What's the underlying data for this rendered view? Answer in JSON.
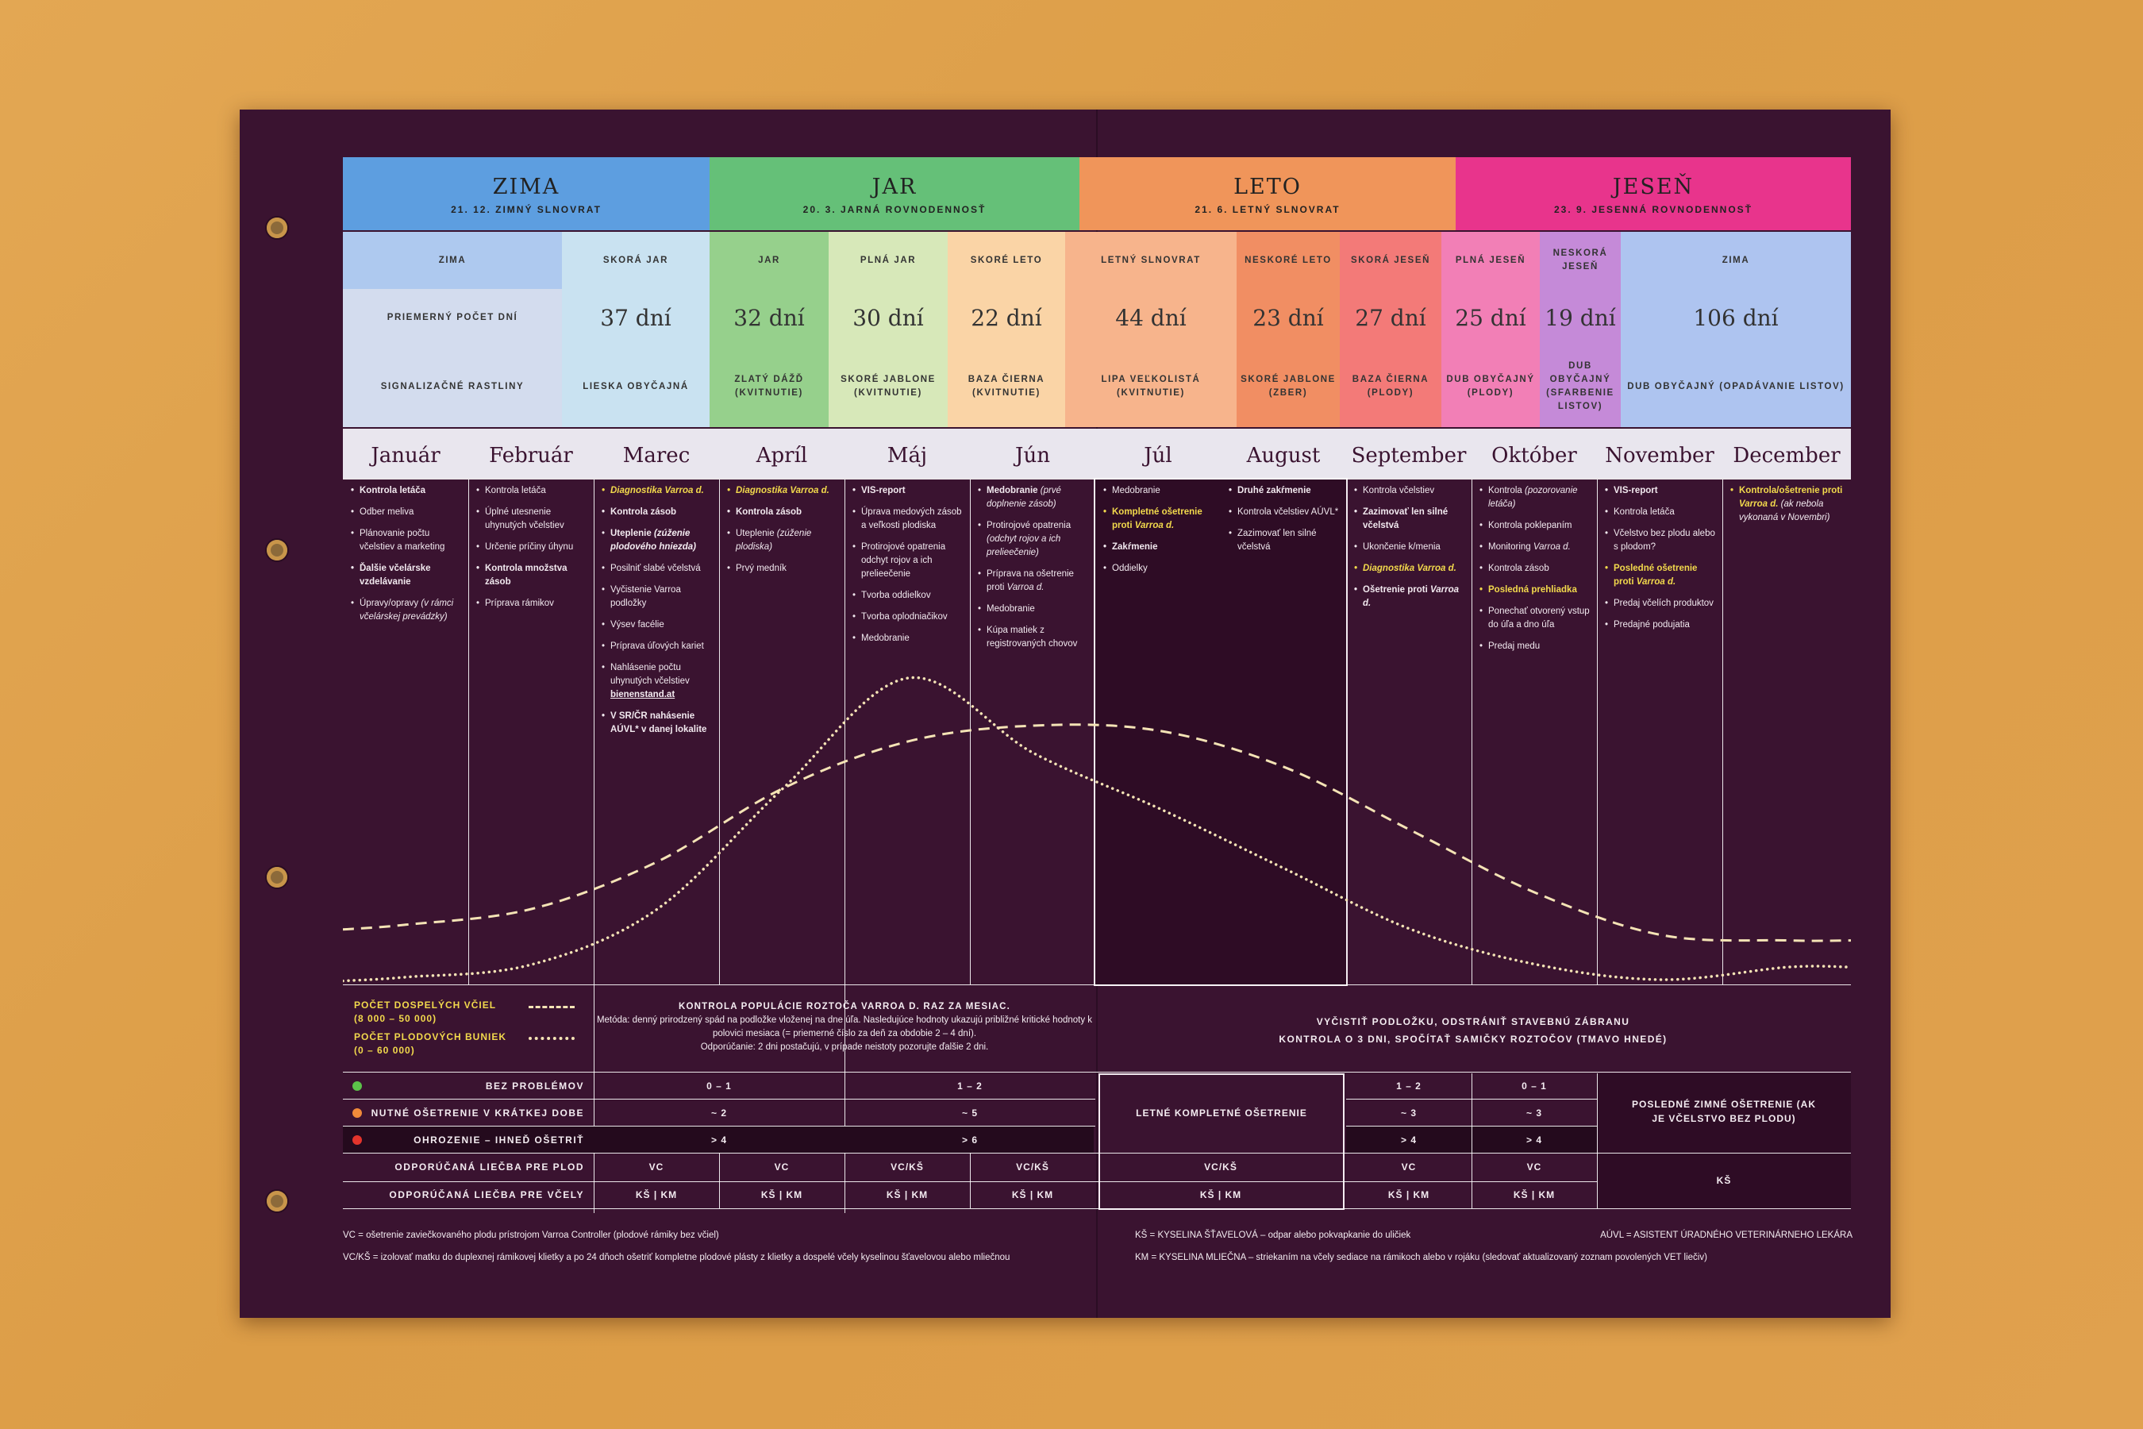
{
  "seasons": [
    {
      "title": "ZIMA",
      "sub": "21. 12. ZIMNÝ SLNOVRAT",
      "color": "#5d9ee0"
    },
    {
      "title": "JAR",
      "sub": "20. 3. JARNÁ ROVNODENNOSŤ",
      "color": "#65c078"
    },
    {
      "title": "LETO",
      "sub": "21. 6. LETNÝ SLNOVRAT",
      "color": "#f0955a"
    },
    {
      "title": "JESEŇ",
      "sub": "23. 9. JESENNÁ ROVNODENNOSŤ",
      "color": "#e8348c"
    }
  ],
  "phen": [
    {
      "name": "ZIMA",
      "days": "",
      "plant": "",
      "color": "#aec9ef"
    },
    {
      "name": "SKORÁ JAR",
      "days": "37 dní",
      "plant": "LIESKA OBYČAJNÁ",
      "color": "#c9e2f1"
    },
    {
      "name": "JAR",
      "days": "32 dní",
      "plant": "ZLATÝ DÁŽĎ (KVITNUTIE)",
      "color": "#96d08c"
    },
    {
      "name": "PLNÁ JAR",
      "days": "30 dní",
      "plant": "SKORÉ JABLONE (KVITNUTIE)",
      "color": "#d7e8b9"
    },
    {
      "name": "SKORÉ LETO",
      "days": "22 dní",
      "plant": "BAZA ČIERNA (KVITNUTIE)",
      "color": "#fad4a6"
    },
    {
      "name": "LETNÝ SLNOVRAT",
      "days": "44 dní",
      "plant": "LIPA VEĽKOLISTÁ (KVITNUTIE)",
      "color": "#f7b48c"
    },
    {
      "name": "NESKORÉ LETO",
      "days": "23 dní",
      "plant": "SKORÉ JABLONE (ZBER)",
      "color": "#f18e63"
    },
    {
      "name": "SKORÁ JESEŇ",
      "days": "27 dní",
      "plant": "BAZA ČIERNA (PLODY)",
      "color": "#f37a78"
    },
    {
      "name": "PLNÁ JESEŇ",
      "days": "25 dní",
      "plant": "DUB OBYČAJNÝ (PLODY)",
      "color": "#f27fb6"
    },
    {
      "name": "NESKORÁ JESEŇ",
      "days": "19 dní",
      "plant": "DUB OBYČAJNÝ (SFARBENIE LISTOV)",
      "color": "#c58ad8"
    },
    {
      "name": "ZIMA",
      "days": "106 dní",
      "plant": "DUB OBYČAJNÝ (OPADÁVANIE LISTOV)",
      "color": "#aec4f0"
    }
  ],
  "rowlabels": {
    "days": "PRIEMERNÝ POČET DNÍ",
    "plants": "SIGNALIZAČNÉ RASTLINY"
  },
  "months": [
    "Január",
    "Február",
    "Marec",
    "Apríl",
    "Máj",
    "Jún",
    "Júl",
    "August",
    "September",
    "Október",
    "November",
    "December"
  ],
  "legend": {
    "adult": "POČET DOSPELÝCH VČIEL",
    "adult_range": "(8 000 – 50 000)",
    "brood": "POČET PLODOVÝCH BUNIEK",
    "brood_range": "(0 – 60 000)"
  },
  "control_left": {
    "title": "KONTROLA POPULÁCIE ROZTOČA VARROA D. RAZ ZA MESIAC.",
    "method": "Metóda: denný prirodzený spád na podložke vloženej na dne úľa. Nasledujúce hodnoty ukazujú približné kritické hodnoty k polovici mesiaca (= priemerné číslo za deň za obdobie 2 – 4 dní).",
    "reco": "Odporúčanie: 2 dni postačujú, v prípade neistoty pozorujte ďalšie 2 dni."
  },
  "control_right": {
    "line1": "VYČISTIŤ PODLOŽKU, ODSTRÁNIŤ STAVEBNÚ ZÁBRANU",
    "line2": "KONTROLA O 3 DNI, SPOČÍTAŤ SAMIČKY ROZTOČOV (TMAVO HNEDÉ)"
  },
  "status": {
    "ok": "BEZ PROBLÉMOV",
    "soon": "NUTNÉ OŠETRENIE V KRÁTKEJ DOBE",
    "danger": "OHROZENIE – IHNEĎ OŠETRIŤ",
    "brood": "ODPORÚČANÁ LIEČBA PRE PLOD",
    "bees": "ODPORÚČANÁ LIEČBA PRE VČELY"
  },
  "vals": {
    "ok_a": "0 – 1",
    "ok_b": "1 – 2",
    "ok_c": "1 – 2",
    "ok_d": "0 – 1",
    "soon_a": "~ 2",
    "soon_b": "~ 5",
    "soon_c": "~ 3",
    "soon_d": "~ 3",
    "dng_a": "> 4",
    "dng_b": "> 6",
    "dng_c": "> 4",
    "dng_d": "> 4",
    "vc": "VC",
    "vcks": "VC/KŠ",
    "kskm": "KŠ | KM",
    "ks": "KŠ",
    "summer": "LETNÉ KOMPLETNÉ OŠETRENIE",
    "winter": "POSLEDNÉ ZIMNÉ OŠETRENIE (AK JE VČELSTVO BEZ PLODU)"
  },
  "footer": {
    "vc": "VC = ošetrenie zaviečkovaného plodu prístrojom Varroa Controller (plodové rámiky bez včiel)",
    "vcks": "VC/KŠ = izolovať matku do duplexnej rámikovej klietky a po 24 dňoch ošetriť kompletne plodové plásty z klietky a dospelé včely kyselinou šťavelovou alebo mliečnou",
    "ks": "KŠ = KYSELINA ŠŤAVELOVÁ – odpar alebo pokvapkanie do uličiek",
    "auvl": "AÚVL = ASISTENT ÚRADNÉHO VETERINÁRNEHO LEKÁRA",
    "km": "KM = KYSELINA MLIEČNA – striekaním na včely sediace na rámikoch alebo v rojáku (sledovať aktualizovaný zoznam povolených VET liečiv)"
  },
  "chart_data": {
    "type": "line",
    "x": [
      "Január",
      "Február",
      "Marec",
      "Apríl",
      "Máj",
      "Jún",
      "Júl",
      "August",
      "September",
      "Október",
      "November",
      "December"
    ],
    "series": [
      {
        "name": "POČET DOSPELÝCH VČIEL",
        "style": "dashed",
        "values": [
          12000,
          15000,
          24000,
          38000,
          47000,
          50000,
          49000,
          42000,
          30000,
          18000,
          10000,
          9000
        ]
      },
      {
        "name": "POČET PLODOVÝCH BUNIEK",
        "style": "dotted",
        "values": [
          500,
          3000,
          14000,
          38000,
          60000,
          45000,
          34000,
          22000,
          10000,
          3000,
          0,
          2500
        ]
      }
    ]
  }
}
